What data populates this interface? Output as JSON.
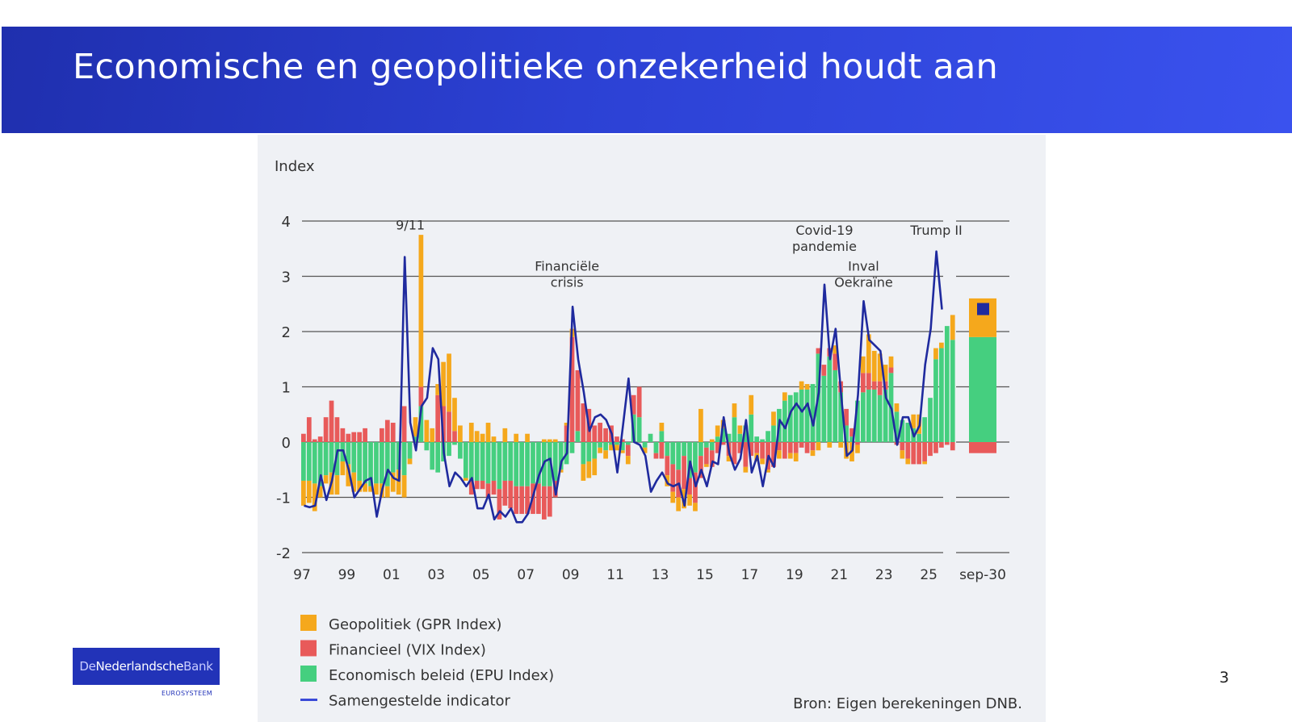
{
  "slide": {
    "title": "Economische en geopolitieke onzekerheid houdt aan",
    "page_number": "3",
    "logo": {
      "text_a": "De",
      "text_b": "Nederlandsche",
      "text_c": "Bank",
      "subtitle": "EUROSYSTEEM"
    },
    "source": "Bron: Eigen berekeningen DNB.",
    "colors": {
      "header_start": "#1f2fae",
      "header_end": "#3a52ee",
      "panel": "#eff1f5"
    }
  },
  "chart_data": {
    "type": "bar",
    "subtype": "stacked-bar-with-line",
    "title": "",
    "ylabel": "Index",
    "xlabel": "",
    "ylim": [
      -2,
      4
    ],
    "yticks": [
      -2,
      -1,
      0,
      1,
      2,
      3,
      4
    ],
    "xtick_labels": [
      "97",
      "99",
      "01",
      "03",
      "05",
      "07",
      "09",
      "11",
      "13",
      "15",
      "17",
      "19",
      "21",
      "23",
      "25"
    ],
    "extra_category_label": "sep-30",
    "grid": "horizontal",
    "legend_position": "bottom-left",
    "colors": {
      "gpr": "#f5a81c",
      "vix": "#e85a5a",
      "epu": "#45cf7f",
      "composite": "#1f2a9e"
    },
    "legend": [
      {
        "key": "gpr",
        "label": "Geopolitiek (GPR Index)",
        "type": "square"
      },
      {
        "key": "vix",
        "label": "Financieel (VIX Index)",
        "type": "square"
      },
      {
        "key": "epu",
        "label": "Economisch beleid (EPU Index)",
        "type": "square"
      },
      {
        "key": "composite",
        "label": "Samengestelde indicator",
        "type": "line"
      }
    ],
    "annotations": [
      {
        "text": "9/11",
        "x": "2001Q4",
        "y": 3.85
      },
      {
        "text": "Financiële crisis",
        "lines": [
          "Financiële",
          "crisis"
        ],
        "x": "2008Q4",
        "y": 3.1
      },
      {
        "text": "Covid-19 pandemie",
        "lines": [
          "Covid-19",
          "pandemie"
        ],
        "x": "2020Q2",
        "y": 3.75
      },
      {
        "text": "Inval Oekraïne",
        "lines": [
          "Inval",
          "Oekraïne"
        ],
        "x": "2022Q1",
        "y": 3.1
      },
      {
        "text": "Trump II",
        "x": "2025Q2",
        "y": 3.75
      }
    ],
    "frequency": "quarterly",
    "start": "1997Q1",
    "series": [
      {
        "name": "Economisch beleid (EPU Index)",
        "key": "epu",
        "values": [
          -0.7,
          -0.7,
          -0.75,
          -0.8,
          -0.6,
          -0.55,
          -0.6,
          -0.35,
          -0.4,
          -0.55,
          -0.7,
          -0.75,
          -0.8,
          -0.75,
          -0.75,
          -0.8,
          -0.55,
          -0.5,
          -0.6,
          -0.3,
          0.1,
          0.65,
          -0.15,
          -0.5,
          -0.55,
          -0.35,
          -0.25,
          -0.05,
          -0.3,
          -0.65,
          -0.7,
          -0.7,
          -0.7,
          -0.75,
          -0.7,
          -0.85,
          -0.7,
          -0.7,
          -0.8,
          -0.8,
          -0.8,
          -0.75,
          -0.75,
          -0.8,
          -0.8,
          -0.7,
          -0.5,
          -0.4,
          -0.2,
          0.2,
          -0.4,
          -0.35,
          -0.3,
          -0.1,
          -0.15,
          -0.05,
          -0.05,
          -0.15,
          -0.05,
          0.5,
          0.45,
          -0.1,
          0.15,
          -0.2,
          0.2,
          -0.25,
          -0.4,
          -0.5,
          -0.25,
          -0.65,
          -0.55,
          -0.25,
          -0.1,
          -0.15,
          0.1,
          0.25,
          0.15,
          0.45,
          0.15,
          0.3,
          0.5,
          0.1,
          0.05,
          0.2,
          0.3,
          0.6,
          0.75,
          0.85,
          0.9,
          0.95,
          0.95,
          1.05,
          1.6,
          1.2,
          1.55,
          1.3,
          0.9,
          0.3,
          0.1,
          0.75,
          0.9,
          0.95,
          0.95,
          0.85,
          0.95,
          1.25,
          0.55,
          0.4,
          0.35,
          0.25,
          0.15,
          0.45,
          0.8,
          1.5,
          1.7,
          2.1,
          1.85
        ],
        "estimated": true
      },
      {
        "name": "Financieel (VIX Index)",
        "key": "vix",
        "values": [
          0.15,
          0.45,
          0.05,
          0.1,
          0.45,
          0.75,
          0.45,
          0.25,
          0.15,
          0.18,
          0.18,
          0.25,
          0.0,
          0.0,
          0.25,
          0.4,
          0.35,
          0.0,
          0.65,
          0.0,
          0.0,
          0.35,
          0.0,
          0.0,
          0.85,
          0.65,
          0.55,
          0.2,
          0.0,
          0.0,
          -0.25,
          -0.15,
          -0.15,
          -0.25,
          -0.25,
          -0.55,
          -0.45,
          -0.5,
          -0.5,
          -0.5,
          -0.5,
          -0.55,
          -0.55,
          -0.6,
          -0.55,
          -0.3,
          0.0,
          0.3,
          1.9,
          1.1,
          0.7,
          0.6,
          0.3,
          0.35,
          0.25,
          0.3,
          0.1,
          0.05,
          -0.2,
          0.35,
          0.55,
          0.0,
          0.0,
          -0.1,
          -0.3,
          -0.35,
          -0.5,
          -0.5,
          -0.6,
          -0.3,
          -0.55,
          -0.4,
          -0.3,
          -0.3,
          -0.2,
          -0.05,
          -0.25,
          -0.4,
          -0.2,
          -0.45,
          -0.25,
          -0.2,
          -0.3,
          -0.5,
          -0.45,
          -0.15,
          -0.3,
          -0.2,
          -0.2,
          -0.1,
          -0.2,
          -0.15,
          0.1,
          0.2,
          0.15,
          0.3,
          0.2,
          0.3,
          0.15,
          -0.05,
          0.35,
          0.3,
          0.15,
          0.25,
          0.15,
          0.1,
          -0.05,
          -0.15,
          -0.3,
          -0.4,
          -0.4,
          -0.35,
          -0.25,
          -0.2,
          -0.1,
          -0.05,
          -0.15
        ],
        "estimated": true
      },
      {
        "name": "Geopolitiek (GPR Index)",
        "key": "gpr",
        "values": [
          -0.45,
          -0.4,
          -0.5,
          -0.2,
          -0.15,
          -0.4,
          -0.35,
          -0.25,
          -0.4,
          -0.35,
          -0.2,
          -0.15,
          -0.1,
          -0.2,
          -0.25,
          -0.2,
          -0.35,
          -0.45,
          -0.4,
          -0.1,
          0.35,
          2.75,
          0.4,
          0.25,
          0.2,
          0.8,
          1.05,
          0.6,
          0.3,
          -0.05,
          0.35,
          0.2,
          0.15,
          0.35,
          0.1,
          0.0,
          0.25,
          0.0,
          0.15,
          0.0,
          0.15,
          0.0,
          0.0,
          0.05,
          0.05,
          0.05,
          -0.05,
          0.05,
          0.15,
          0.0,
          -0.3,
          -0.3,
          -0.3,
          -0.1,
          -0.15,
          -0.1,
          -0.1,
          -0.05,
          -0.15,
          0.0,
          0.0,
          -0.1,
          0.0,
          0.0,
          0.15,
          -0.2,
          -0.2,
          -0.25,
          -0.35,
          -0.2,
          -0.15,
          0.6,
          -0.05,
          0.05,
          0.2,
          0.15,
          -0.1,
          0.25,
          0.15,
          -0.1,
          0.35,
          -0.15,
          -0.1,
          -0.05,
          0.25,
          -0.15,
          0.15,
          -0.1,
          -0.15,
          0.15,
          0.1,
          -0.1,
          -0.15,
          0.0,
          -0.1,
          0.15,
          -0.1,
          -0.3,
          -0.35,
          -0.15,
          0.3,
          0.7,
          0.55,
          0.5,
          0.3,
          0.2,
          0.15,
          -0.15,
          -0.1,
          0.25,
          0.35,
          -0.05,
          0.0,
          0.2,
          0.1,
          0.0,
          0.45
        ],
        "estimated": true
      },
      {
        "name": "Samengestelde indicator",
        "key": "composite",
        "type": "line",
        "values": [
          -1.15,
          -1.18,
          -1.15,
          -0.6,
          -1.05,
          -0.7,
          -0.15,
          -0.15,
          -0.5,
          -1.0,
          -0.85,
          -0.7,
          -0.65,
          -1.35,
          -0.85,
          -0.5,
          -0.65,
          -0.7,
          3.35,
          0.35,
          -0.15,
          0.65,
          0.8,
          1.7,
          1.5,
          -0.2,
          -0.8,
          -0.55,
          -0.65,
          -0.8,
          -0.65,
          -1.2,
          -1.2,
          -0.95,
          -1.4,
          -1.25,
          -1.35,
          -1.2,
          -1.45,
          -1.45,
          -1.3,
          -0.95,
          -0.6,
          -0.35,
          -0.3,
          -0.95,
          -0.35,
          -0.2,
          2.45,
          1.5,
          0.9,
          0.2,
          0.45,
          0.5,
          0.4,
          0.15,
          -0.55,
          0.3,
          1.15,
          0.0,
          -0.05,
          -0.25,
          -0.9,
          -0.7,
          -0.55,
          -0.75,
          -0.8,
          -0.75,
          -1.15,
          -0.35,
          -0.8,
          -0.5,
          -0.8,
          -0.35,
          -0.4,
          0.45,
          -0.2,
          -0.5,
          -0.3,
          0.4,
          -0.55,
          -0.25,
          -0.8,
          -0.25,
          -0.45,
          0.4,
          0.25,
          0.55,
          0.7,
          0.55,
          0.7,
          0.3,
          0.9,
          2.85,
          1.5,
          2.05,
          0.85,
          -0.25,
          -0.15,
          0.85,
          2.55,
          1.85,
          1.75,
          1.65,
          0.8,
          0.6,
          -0.05,
          0.45,
          0.45,
          0.1,
          0.3,
          1.4,
          2.05,
          3.45,
          2.4
        ],
        "estimated": true
      }
    ],
    "projection": {
      "label": "sep-30",
      "epu": 1.9,
      "gpr": 0.7,
      "vix": -0.2,
      "composite_marker": 2.4
    }
  }
}
